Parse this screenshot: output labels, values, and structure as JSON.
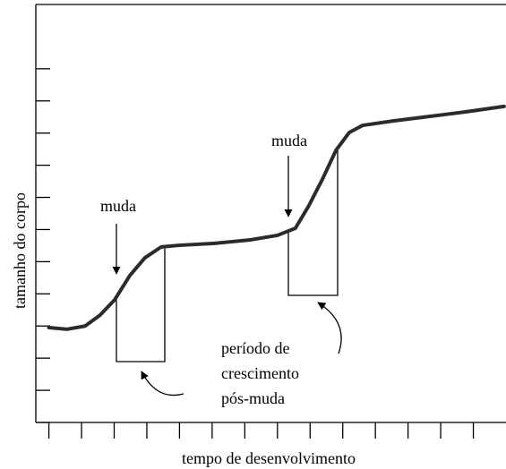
{
  "chart_data": {
    "type": "line",
    "xlabel": "tempo de desenvolvimento",
    "ylabel": "tamanho do corpo",
    "annotations": [
      "muda",
      "muda",
      "período de",
      "crescimento",
      "pós-muda"
    ],
    "x": [
      0,
      0.56,
      1.11,
      1.57,
      2.01,
      2.48,
      2.94,
      3.44,
      3.99,
      5.08,
      6.18,
      7.0,
      7.55,
      7.96,
      8.38,
      8.79,
      9.2,
      9.61,
      10.57,
      11.67,
      12.76,
      13.94
    ],
    "values": [
      2.95,
      2.9,
      3.0,
      3.34,
      3.81,
      4.57,
      5.12,
      5.46,
      5.51,
      5.57,
      5.68,
      5.82,
      6.04,
      6.74,
      7.57,
      8.46,
      9.02,
      9.24,
      9.38,
      9.52,
      9.66,
      9.83
    ],
    "color": "#2b2b2b",
    "xlim": [
      -0.4,
      14
    ],
    "ylim": [
      0,
      13
    ],
    "xticks": [
      0,
      1,
      2,
      3,
      4,
      5,
      6,
      7,
      8,
      9,
      10,
      11,
      12,
      13
    ],
    "yticks": [
      0,
      1,
      2,
      3,
      4,
      5,
      6,
      7,
      8,
      9,
      10,
      11
    ]
  }
}
